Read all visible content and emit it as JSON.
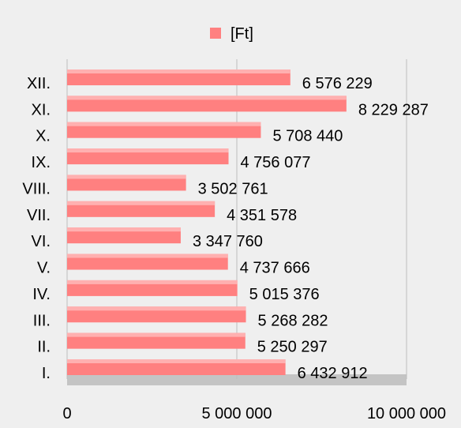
{
  "chart_data": {
    "type": "bar",
    "orientation": "horizontal",
    "categories": [
      "I.",
      "II.",
      "III.",
      "IV.",
      "V.",
      "VI.",
      "VII.",
      "VIII.",
      "IX.",
      "X.",
      "XI.",
      "XII."
    ],
    "series": [
      {
        "name": "[Ft]",
        "color": "#ff8080",
        "values": [
          6432912,
          5250297,
          5268282,
          5015376,
          4737666,
          3347760,
          4351578,
          3502761,
          4756077,
          5708440,
          8229287,
          6576229
        ],
        "value_labels": [
          "6 432 912",
          "5 250 297",
          "5 268 282",
          "5 015 376",
          "4 737 666",
          "3 347 760",
          "4 351 578",
          "3 502 761",
          "4 756 077",
          "5 708 440",
          "8 229 287",
          "6 576 229"
        ]
      }
    ],
    "xlim": [
      0,
      10000000
    ],
    "xticks": [
      0,
      {
        "value": 5000000,
        "label": "5 000 000"
      },
      {
        "value": 10000000,
        "label": "10 000 000"
      }
    ],
    "grid": true,
    "legend": "top"
  }
}
